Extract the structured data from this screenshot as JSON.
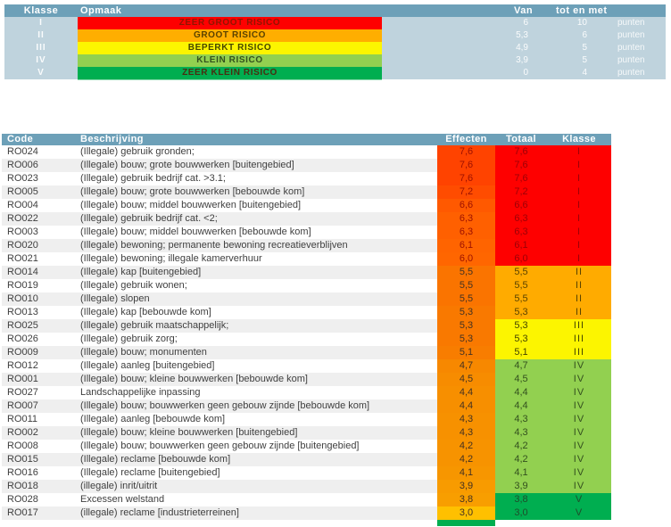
{
  "palette": {
    "header_bg": "#6DA0B8",
    "legend_body_bg": "#BFD3DD",
    "zebra": "#EFEFEF",
    "partial_strip": "#00AE50",
    "class_styles": {
      "I": {
        "bg": "#FE0000",
        "fg": "#9C0006"
      },
      "II": {
        "bg": "#FFAB00",
        "fg": "#5A4300"
      },
      "III": {
        "bg": "#FCF500",
        "fg": "#454500"
      },
      "IV": {
        "bg": "#92D050",
        "fg": "#33501E"
      },
      "V": {
        "bg": "#00AE50",
        "fg": "#1E4D2B"
      }
    }
  },
  "legend": {
    "headers": {
      "klasse": "Klasse",
      "opmaak": "Opmaak",
      "van": "Van",
      "tot_en_met": "tot en met"
    },
    "unit": "punten",
    "rows": [
      {
        "klasse": "I",
        "label": "ZEER GROOT RISICO",
        "bg": "#FE0000",
        "fg": "#8F1500",
        "van": "6",
        "tot": "10"
      },
      {
        "klasse": "II",
        "label": "GROOT RISICO",
        "bg": "#FFAE00",
        "fg": "#5A4300",
        "van": "5,3",
        "tot": "6"
      },
      {
        "klasse": "III",
        "label": "BEPERKT RISICO",
        "bg": "#FCF500",
        "fg": "#454500",
        "van": "4,9",
        "tot": "5"
      },
      {
        "klasse": "IV",
        "label": "KLEIN RISICO",
        "bg": "#92D050",
        "fg": "#33501E",
        "van": "3,9",
        "tot": "5"
      },
      {
        "klasse": "V",
        "label": "ZEER KLEIN RISICO",
        "bg": "#00AE50",
        "fg": "#4A2D10",
        "van": "0",
        "tot": "4"
      }
    ]
  },
  "risk_table": {
    "headers": {
      "code": "Code",
      "beschrijving": "Beschrijving",
      "effecten": "Effecten",
      "totaal": "Totaal",
      "klasse": "Klasse"
    },
    "rows": [
      {
        "code": "RO024",
        "beschrijving": "(Illegale) gebruik gronden;",
        "effecten": "7,6",
        "totaal": "7,6",
        "klasse": "I",
        "eff_bg": "#FF4300",
        "eff_fg": "#9C1000"
      },
      {
        "code": "RO006",
        "beschrijving": "(Illegale) bouw; grote bouwwerken [buitengebied]",
        "effecten": "7,6",
        "totaal": "7,6",
        "klasse": "I",
        "eff_bg": "#FF4300",
        "eff_fg": "#9C1000"
      },
      {
        "code": "RO023",
        "beschrijving": "(Illegale) gebruik bedrijf cat. >3.1;",
        "effecten": "7,6",
        "totaal": "7,6",
        "klasse": "I",
        "eff_bg": "#FF4300",
        "eff_fg": "#9C1000"
      },
      {
        "code": "RO005",
        "beschrijving": "(Illegale) bouw; grote bouwwerken [bebouwde kom]",
        "effecten": "7,2",
        "totaal": "7,2",
        "klasse": "I",
        "eff_bg": "#FF4C00",
        "eff_fg": "#9C1000"
      },
      {
        "code": "RO004",
        "beschrijving": "(Illegale) bouw; middel bouwwerken [buitengebied]",
        "effecten": "6,6",
        "totaal": "6,6",
        "klasse": "I",
        "eff_bg": "#FF5900",
        "eff_fg": "#9C1000"
      },
      {
        "code": "RO022",
        "beschrijving": "(Illegale) gebruik bedrijf cat. <2;",
        "effecten": "6,3",
        "totaal": "6,3",
        "klasse": "I",
        "eff_bg": "#FF6000",
        "eff_fg": "#9C1000"
      },
      {
        "code": "RO003",
        "beschrijving": "(Illegale) bouw; middel bouwwerken [bebouwde kom]",
        "effecten": "6,3",
        "totaal": "6,3",
        "klasse": "I",
        "eff_bg": "#FF6000",
        "eff_fg": "#9C1000"
      },
      {
        "code": "RO020",
        "beschrijving": "(Illegale) bewoning; permanente bewoning recreatieverblijven",
        "effecten": "6,1",
        "totaal": "6,1",
        "klasse": "I",
        "eff_bg": "#FF6400",
        "eff_fg": "#9C1000"
      },
      {
        "code": "RO021",
        "beschrijving": "(Illegale) bewoning; illegale kamerverhuur",
        "effecten": "6,0",
        "totaal": "6,0",
        "klasse": "I",
        "eff_bg": "#FF6600",
        "eff_fg": "#9C1000"
      },
      {
        "code": "RO014",
        "beschrijving": "(Illegale) kap [buitengebied]",
        "effecten": "5,5",
        "totaal": "5,5",
        "klasse": "II",
        "eff_bg": "#FA7400",
        "eff_fg": "#443222"
      },
      {
        "code": "RO019",
        "beschrijving": "(Illegale) gebruik wonen;",
        "effecten": "5,5",
        "totaal": "5,5",
        "klasse": "II",
        "eff_bg": "#FA7400",
        "eff_fg": "#443222"
      },
      {
        "code": "RO010",
        "beschrijving": "(Illegale) slopen",
        "effecten": "5,5",
        "totaal": "5,5",
        "klasse": "II",
        "eff_bg": "#FA7400",
        "eff_fg": "#443222"
      },
      {
        "code": "RO013",
        "beschrijving": "(Illegale) kap [bebouwde kom]",
        "effecten": "5,3",
        "totaal": "5,3",
        "klasse": "II",
        "eff_bg": "#F97900",
        "eff_fg": "#443222"
      },
      {
        "code": "RO025",
        "beschrijving": "(Illegale) gebruik maatschappelijk;",
        "effecten": "5,3",
        "totaal": "5,3",
        "klasse": "III",
        "eff_bg": "#F97900",
        "eff_fg": "#443222"
      },
      {
        "code": "RO026",
        "beschrijving": "(Illegale) gebruik zorg;",
        "effecten": "5,3",
        "totaal": "5,3",
        "klasse": "III",
        "eff_bg": "#F97900",
        "eff_fg": "#443222"
      },
      {
        "code": "RO009",
        "beschrijving": "(Illegale) bouw; monumenten",
        "effecten": "5,1",
        "totaal": "5,1",
        "klasse": "III",
        "eff_bg": "#F87D00",
        "eff_fg": "#443222"
      },
      {
        "code": "RO012",
        "beschrijving": "(Illegale) aanleg [buitengebied]",
        "effecten": "4,7",
        "totaal": "4,7",
        "klasse": "IV",
        "eff_bg": "#F78800",
        "eff_fg": "#443222"
      },
      {
        "code": "RO001",
        "beschrijving": "(Illegale) bouw; kleine bouwwerken [bebouwde kom]",
        "effecten": "4,5",
        "totaal": "4,5",
        "klasse": "IV",
        "eff_bg": "#F78C00",
        "eff_fg": "#443222"
      },
      {
        "code": "RO027",
        "beschrijving": "Landschappelijke inpassing",
        "effecten": "4,4",
        "totaal": "4,4",
        "klasse": "IV",
        "eff_bg": "#F78F00",
        "eff_fg": "#443222"
      },
      {
        "code": "RO007",
        "beschrijving": "(Illegale) bouw; bouwwerken geen gebouw zijnde [bebouwde kom]",
        "effecten": "4,4",
        "totaal": "4,4",
        "klasse": "IV",
        "eff_bg": "#F78F00",
        "eff_fg": "#443222"
      },
      {
        "code": "RO011",
        "beschrijving": "(Illegale) aanleg [bebouwde kom]",
        "effecten": "4,3",
        "totaal": "4,3",
        "klasse": "IV",
        "eff_bg": "#F79100",
        "eff_fg": "#443222"
      },
      {
        "code": "RO002",
        "beschrijving": "(Illegale) bouw; kleine bouwwerken [buitengebied]",
        "effecten": "4,3",
        "totaal": "4,3",
        "klasse": "IV",
        "eff_bg": "#F79100",
        "eff_fg": "#443222"
      },
      {
        "code": "RO008",
        "beschrijving": "(Illegale) bouw; bouwwerken geen gebouw zijnde [buitengebied]",
        "effecten": "4,2",
        "totaal": "4,2",
        "klasse": "IV",
        "eff_bg": "#F79300",
        "eff_fg": "#443222"
      },
      {
        "code": "RO015",
        "beschrijving": "(Illegale) reclame [bebouwde kom]",
        "effecten": "4,2",
        "totaal": "4,2",
        "klasse": "IV",
        "eff_bg": "#F79300",
        "eff_fg": "#443222"
      },
      {
        "code": "RO016",
        "beschrijving": "(Illegale) reclame [buitengebied]",
        "effecten": "4,1",
        "totaal": "4,1",
        "klasse": "IV",
        "eff_bg": "#F79600",
        "eff_fg": "#443222"
      },
      {
        "code": "RO018",
        "beschrijving": "(illegale) inrit/uitrit",
        "effecten": "3,9",
        "totaal": "3,9",
        "klasse": "IV",
        "eff_bg": "#F89B00",
        "eff_fg": "#443222"
      },
      {
        "code": "RO028",
        "beschrijving": "Excessen welstand",
        "effecten": "3,8",
        "totaal": "3,8",
        "klasse": "V",
        "eff_bg": "#F89E00",
        "eff_fg": "#443222"
      },
      {
        "code": "RO017",
        "beschrijving": "(illegale) reclame [industrieterreinen]",
        "effecten": "3,0",
        "totaal": "3,0",
        "klasse": "V",
        "eff_bg": "#FFC000",
        "eff_fg": "#443222"
      }
    ]
  }
}
